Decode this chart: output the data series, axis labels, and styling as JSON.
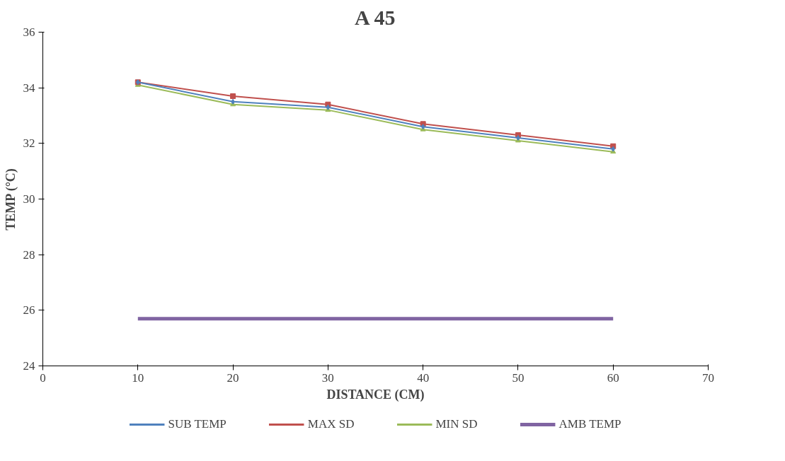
{
  "chart_data": {
    "type": "line",
    "title": "A 45",
    "xlabel": "DISTANCE (CM)",
    "ylabel": "TEMP (°C)",
    "x": [
      10,
      20,
      30,
      40,
      50,
      60
    ],
    "xlim": [
      0,
      70
    ],
    "xticks": [
      0,
      10,
      20,
      30,
      40,
      50,
      60,
      70
    ],
    "ylim": [
      24,
      36
    ],
    "yticks": [
      24,
      26,
      28,
      30,
      32,
      34,
      36
    ],
    "grid": false,
    "legend": "bottom",
    "series": [
      {
        "name": "SUB TEMP",
        "color": "#4f81bd",
        "marker": "diamond",
        "values": [
          34.2,
          33.5,
          33.3,
          32.6,
          32.2,
          31.8
        ]
      },
      {
        "name": "MAX SD",
        "color": "#c0504d",
        "marker": "square",
        "values": [
          34.2,
          33.7,
          33.4,
          32.7,
          32.3,
          31.9
        ]
      },
      {
        "name": "MIN SD",
        "color": "#9bbb59",
        "marker": "triangle",
        "values": [
          34.1,
          33.4,
          33.2,
          32.5,
          32.1,
          31.7
        ]
      },
      {
        "name": "AMB TEMP",
        "color": "#8064a2",
        "marker": "none",
        "values": [
          25.7,
          25.7,
          25.7,
          25.7,
          25.7,
          25.7
        ]
      }
    ]
  }
}
